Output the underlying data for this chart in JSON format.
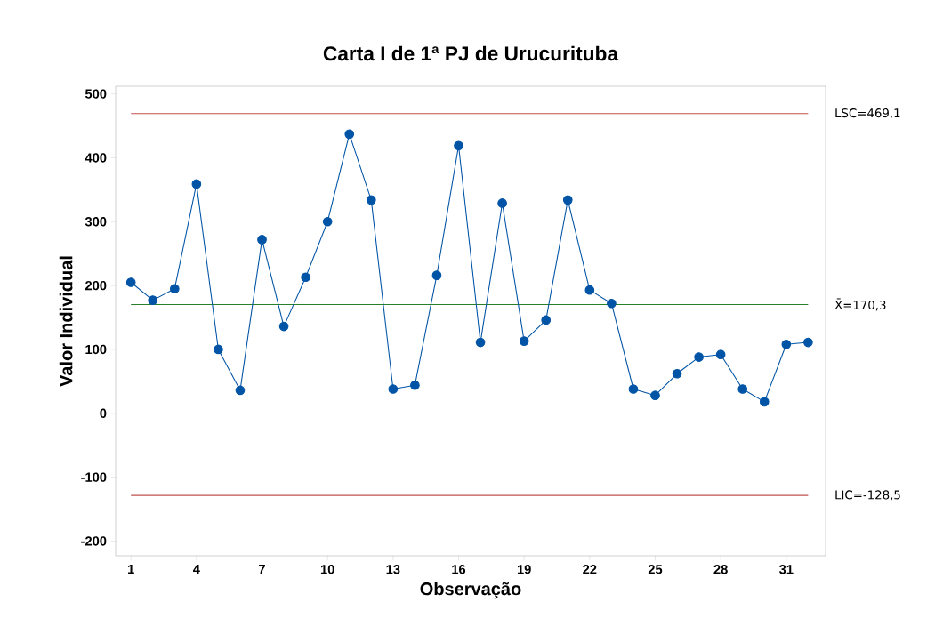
{
  "chart_data": {
    "type": "line",
    "title": "Carta I de 1ª PJ de Urucurituba",
    "xlabel": "Observação",
    "ylabel": "Valor Individual",
    "x": [
      1,
      2,
      3,
      4,
      5,
      6,
      7,
      8,
      9,
      10,
      11,
      12,
      13,
      14,
      15,
      16,
      17,
      18,
      19,
      20,
      21,
      22,
      23,
      24,
      25,
      26,
      27,
      28,
      29,
      30,
      31,
      32
    ],
    "values": [
      205,
      177,
      195,
      359,
      100,
      36,
      272,
      136,
      213,
      300,
      437,
      334,
      38,
      44,
      216,
      419,
      111,
      329,
      113,
      146,
      334,
      193,
      172,
      38,
      28,
      62,
      88,
      92,
      38,
      18,
      108,
      111
    ],
    "color": "#0054a6",
    "marker": "circle",
    "line_style": "solid",
    "xlim": [
      0.3,
      32.8
    ],
    "xticks": [
      1,
      4,
      7,
      10,
      13,
      16,
      19,
      22,
      25,
      28,
      31
    ],
    "ylim": [
      -223,
      512
    ],
    "yticks": [
      -200,
      -100,
      0,
      100,
      200,
      300,
      400,
      500
    ],
    "ref_lines": [
      {
        "axis": "y",
        "value": 469.1,
        "label": "LSC=469,1",
        "color": "#c0504d"
      },
      {
        "axis": "y",
        "value": 170.3,
        "label": "X̄=170,3",
        "color": "#2a7f2a"
      },
      {
        "axis": "y",
        "value": -128.5,
        "label": "LIC=-128,5",
        "color": "#c0504d"
      }
    ]
  }
}
